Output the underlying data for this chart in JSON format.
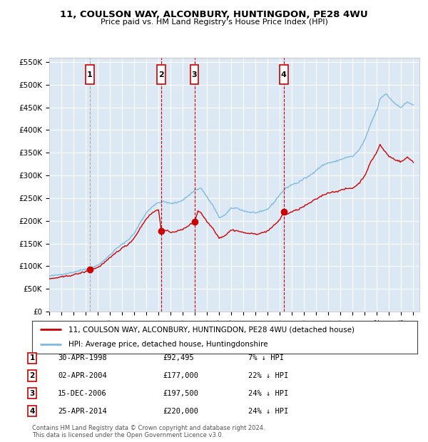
{
  "title": "11, COULSON WAY, ALCONBURY, HUNTINGDON, PE28 4WU",
  "subtitle": "Price paid vs. HM Land Registry's House Price Index (HPI)",
  "ylim": [
    0,
    560000
  ],
  "yticks": [
    0,
    50000,
    100000,
    150000,
    200000,
    250000,
    300000,
    350000,
    400000,
    450000,
    500000,
    550000
  ],
  "ytick_labels": [
    "£0",
    "£50K",
    "£100K",
    "£150K",
    "£200K",
    "£250K",
    "£300K",
    "£350K",
    "£400K",
    "£450K",
    "£500K",
    "£550K"
  ],
  "xlim_start": 1995.0,
  "xlim_end": 2025.5,
  "plot_bg_color": "#dce9f5",
  "grid_color": "#ffffff",
  "hpi_color": "#7fb9e0",
  "price_color": "#cc0000",
  "vline1_color": "#aaaaaa",
  "vline_color": "#cc0000",
  "transactions": [
    {
      "num": 1,
      "date": "30-APR-1998",
      "year": 1998.33,
      "price": 92495,
      "label": "1",
      "pct": "7% ↓ HPI"
    },
    {
      "num": 2,
      "date": "02-APR-2004",
      "year": 2004.25,
      "price": 177000,
      "label": "2",
      "pct": "22% ↓ HPI"
    },
    {
      "num": 3,
      "date": "15-DEC-2006",
      "year": 2006.96,
      "price": 197500,
      "label": "3",
      "pct": "24% ↓ HPI"
    },
    {
      "num": 4,
      "date": "25-APR-2014",
      "year": 2014.32,
      "price": 220000,
      "label": "4",
      "pct": "24% ↓ HPI"
    }
  ],
  "legend_line1": "11, COULSON WAY, ALCONBURY, HUNTINGDON, PE28 4WU (detached house)",
  "legend_line2": "HPI: Average price, detached house, Huntingdonshire",
  "footer": "Contains HM Land Registry data © Crown copyright and database right 2024.\nThis data is licensed under the Open Government Licence v3.0."
}
